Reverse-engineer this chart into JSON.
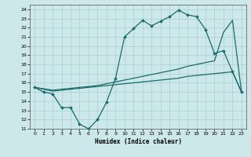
{
  "xlabel": "Humidex (Indice chaleur)",
  "bg_color": "#cce8ea",
  "line_color": "#1a6b6b",
  "xlim": [
    -0.5,
    23.5
  ],
  "ylim": [
    11,
    24.5
  ],
  "xticks": [
    0,
    1,
    2,
    3,
    4,
    5,
    6,
    7,
    8,
    9,
    10,
    11,
    12,
    13,
    14,
    15,
    16,
    17,
    18,
    19,
    20,
    21,
    22,
    23
  ],
  "yticks": [
    11,
    12,
    13,
    14,
    15,
    16,
    17,
    18,
    19,
    20,
    21,
    22,
    23,
    24
  ],
  "line1_x": [
    0,
    1,
    2,
    3,
    4,
    5,
    6,
    7,
    8,
    9,
    10,
    11,
    12,
    13,
    14,
    15,
    16,
    17,
    18,
    19,
    20,
    21,
    22,
    23
  ],
  "line1_y": [
    15.5,
    15.0,
    14.8,
    13.3,
    13.3,
    11.5,
    11.0,
    12.0,
    13.9,
    16.5,
    21.0,
    21.9,
    22.8,
    22.2,
    22.7,
    23.2,
    23.9,
    23.4,
    23.2,
    21.8,
    19.2,
    19.5,
    17.2,
    15.0
  ],
  "line2_x": [
    0,
    2,
    3,
    4,
    5,
    6,
    7,
    8,
    9,
    10,
    11,
    12,
    13,
    14,
    15,
    16,
    17,
    18,
    19,
    20,
    21,
    22,
    23
  ],
  "line2_y": [
    15.5,
    15.2,
    15.3,
    15.4,
    15.5,
    15.6,
    15.7,
    15.9,
    16.1,
    16.3,
    16.5,
    16.7,
    16.9,
    17.1,
    17.3,
    17.5,
    17.8,
    18.0,
    18.2,
    18.4,
    21.5,
    22.8,
    15.0
  ],
  "line3_x": [
    0,
    2,
    3,
    4,
    5,
    6,
    7,
    8,
    9,
    10,
    11,
    12,
    13,
    14,
    15,
    16,
    17,
    18,
    19,
    20,
    21,
    22,
    23
  ],
  "line3_y": [
    15.5,
    15.1,
    15.2,
    15.3,
    15.4,
    15.5,
    15.6,
    15.7,
    15.8,
    15.9,
    16.0,
    16.1,
    16.2,
    16.3,
    16.4,
    16.5,
    16.7,
    16.8,
    16.9,
    17.0,
    17.1,
    17.2,
    15.0
  ]
}
